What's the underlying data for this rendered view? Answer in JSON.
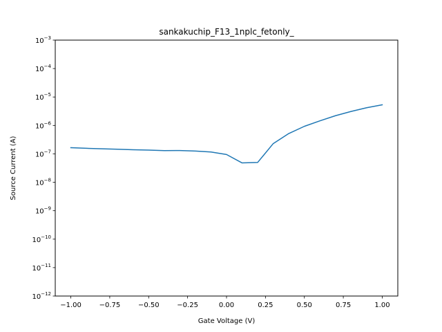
{
  "chart_data": {
    "type": "line",
    "title": "sankakuchip_F13_1nplc_fetonly_",
    "xlabel": "Gate Voltage (V)",
    "ylabel": "Source Current (A)",
    "yscale": "log",
    "xlim": [
      -1.1,
      1.1
    ],
    "ylim": [
      1e-12,
      0.001
    ],
    "grid": false,
    "x_ticks": [
      -1.0,
      -0.75,
      -0.5,
      -0.25,
      0.0,
      0.25,
      0.5,
      0.75,
      1.0
    ],
    "x_tick_labels": [
      "−1.00",
      "−0.75",
      "−0.50",
      "−0.25",
      "0.00",
      "0.25",
      "0.50",
      "0.75",
      "1.00"
    ],
    "y_ticks": [
      {
        "exp": -12,
        "base": "10",
        "sup": "−12"
      },
      {
        "exp": -11,
        "base": "10",
        "sup": "−11"
      },
      {
        "exp": -10,
        "base": "10",
        "sup": "−10"
      },
      {
        "exp": -9,
        "base": "10",
        "sup": "−9"
      },
      {
        "exp": -8,
        "base": "10",
        "sup": "−8"
      },
      {
        "exp": -7,
        "base": "10",
        "sup": "−7"
      },
      {
        "exp": -6,
        "base": "10",
        "sup": "−6"
      },
      {
        "exp": -5,
        "base": "10",
        "sup": "−5"
      },
      {
        "exp": -4,
        "base": "10",
        "sup": "−4"
      },
      {
        "exp": -3,
        "base": "10",
        "sup": "−3"
      }
    ],
    "series": [
      {
        "color": "#1f77b4",
        "x": [
          -1.0,
          -0.9,
          -0.8,
          -0.7,
          -0.6,
          -0.5,
          -0.4,
          -0.3,
          -0.2,
          -0.1,
          0.0,
          0.1,
          0.2,
          0.3,
          0.4,
          0.5,
          0.6,
          0.7,
          0.8,
          0.9,
          1.0
        ],
        "y": [
          1.65e-07,
          1.57e-07,
          1.51e-07,
          1.45e-07,
          1.4e-07,
          1.36e-07,
          1.3e-07,
          1.31e-07,
          1.26e-07,
          1.16e-07,
          9.5e-08,
          4.8e-08,
          5e-08,
          2.3e-07,
          5.2e-07,
          9.3e-07,
          1.45e-06,
          2.2e-06,
          3.1e-06,
          4.2e-06,
          5.3e-06
        ]
      }
    ]
  }
}
